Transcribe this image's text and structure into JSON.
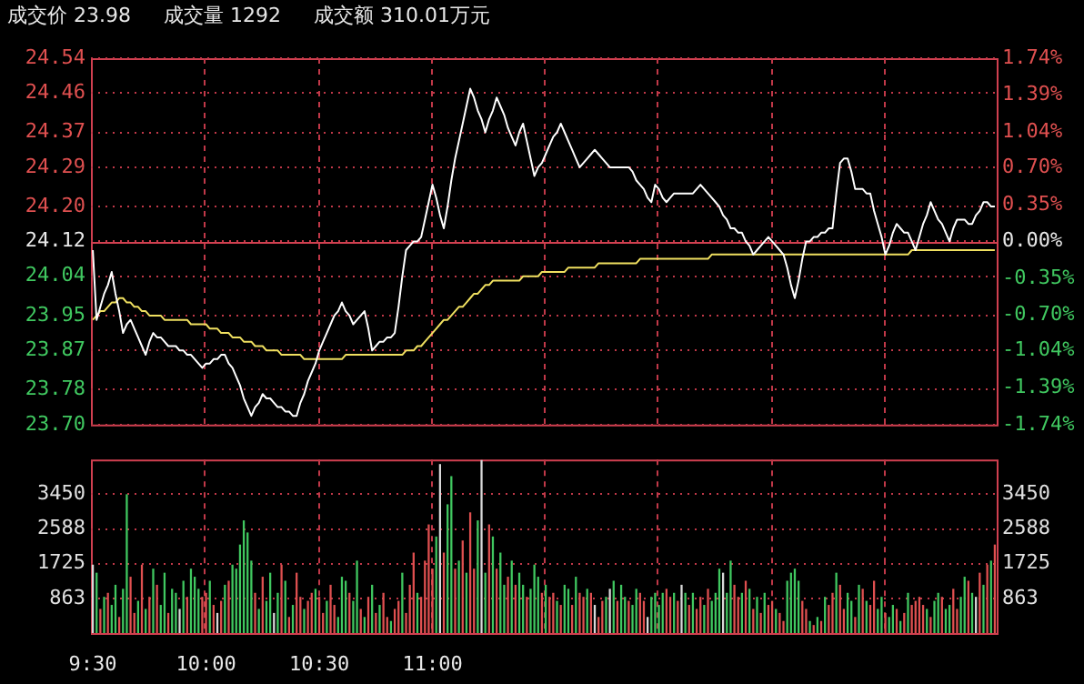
{
  "chart_data": [
    {
      "type": "line",
      "annotations": [
        "成交价 23.98",
        "成交量 1292",
        "成交额 310.01万元"
      ],
      "categories": [
        null,
        null,
        null,
        null,
        null,
        null,
        null,
        null,
        null,
        null,
        null,
        null,
        null,
        null,
        null,
        null,
        null,
        null,
        null,
        null,
        null,
        null,
        null,
        null,
        null,
        null,
        null,
        null,
        null,
        null,
        null,
        null,
        null,
        null,
        null,
        null,
        null,
        null,
        null,
        null,
        null,
        null,
        null,
        null,
        null,
        null,
        null,
        null,
        null,
        null,
        null,
        null,
        null,
        null,
        null,
        null,
        null,
        null,
        null,
        null,
        null,
        null,
        null,
        null,
        null,
        null,
        null,
        null,
        null,
        null,
        null,
        null,
        null,
        null,
        null,
        null,
        null,
        null,
        null,
        null,
        null,
        null,
        null,
        null,
        null,
        null,
        null,
        null,
        null,
        null,
        null,
        null,
        null,
        null,
        null,
        null,
        null,
        null,
        null,
        null,
        null,
        null,
        null,
        null,
        null,
        null,
        null,
        null,
        null,
        null,
        null,
        null,
        null,
        null,
        null,
        null,
        null,
        null,
        null,
        null,
        null,
        null,
        null,
        null,
        null,
        null,
        null,
        null,
        null,
        null,
        null,
        null,
        null,
        null,
        null,
        null,
        null,
        null,
        null,
        null,
        null,
        null,
        null,
        null,
        null,
        null,
        null,
        null,
        null,
        null,
        null,
        null,
        null,
        null,
        null,
        null,
        null,
        null,
        null,
        null,
        null,
        null,
        null,
        null,
        null,
        null,
        null,
        null,
        null,
        null,
        null,
        null,
        null,
        null,
        null,
        null,
        null,
        null,
        null,
        null,
        null,
        null,
        null,
        null,
        null,
        null,
        null,
        null,
        null,
        null,
        null,
        null,
        null,
        null,
        null,
        null,
        null,
        null,
        null,
        null,
        null,
        null,
        null,
        null,
        null,
        null,
        null,
        null,
        null,
        null,
        null,
        null,
        null,
        null,
        null,
        null,
        null,
        null,
        null,
        null,
        null,
        null,
        null,
        null,
        null,
        null,
        null,
        null,
        null,
        null,
        null,
        null,
        null,
        null,
        null,
        null,
        null,
        null,
        null,
        null
      ],
      "series": [
        {
          "color": "#ffffff",
          "values": [
            24.1,
            23.94,
            23.97,
            24.0,
            24.02,
            24.05,
            24.0,
            23.96,
            23.91,
            23.93,
            23.94,
            23.92,
            23.9,
            23.88,
            23.86,
            23.89,
            23.91,
            23.9,
            23.9,
            23.89,
            23.88,
            23.88,
            23.88,
            23.87,
            23.87,
            23.86,
            23.86,
            23.85,
            23.84,
            23.83,
            23.84,
            23.84,
            23.85,
            23.85,
            23.86,
            23.86,
            23.84,
            23.83,
            23.81,
            23.79,
            23.76,
            23.74,
            23.72,
            23.74,
            23.75,
            23.77,
            23.76,
            23.76,
            23.75,
            23.74,
            23.74,
            23.73,
            23.73,
            23.72,
            23.72,
            23.75,
            23.77,
            23.8,
            23.82,
            23.84,
            23.87,
            23.89,
            23.91,
            23.93,
            23.95,
            23.96,
            23.98,
            23.96,
            23.95,
            23.93,
            23.94,
            23.95,
            23.96,
            23.92,
            23.87,
            23.88,
            23.89,
            23.89,
            23.9,
            23.9,
            23.91,
            23.97,
            24.04,
            24.1,
            24.11,
            24.12,
            24.12,
            24.13,
            24.17,
            24.21,
            24.25,
            24.22,
            24.18,
            24.15,
            24.2,
            24.26,
            24.31,
            24.35,
            24.39,
            24.43,
            24.47,
            24.45,
            24.42,
            24.4,
            24.37,
            24.4,
            24.42,
            24.45,
            24.43,
            24.41,
            24.38,
            24.36,
            24.34,
            24.37,
            24.39,
            24.35,
            24.31,
            24.27,
            24.29,
            24.3,
            24.32,
            24.34,
            24.36,
            24.37,
            24.39,
            24.37,
            24.35,
            24.33,
            24.31,
            24.29,
            24.3,
            24.31,
            24.32,
            24.33,
            24.32,
            24.31,
            24.3,
            24.29,
            24.29,
            24.29,
            24.29,
            24.29,
            24.29,
            24.28,
            24.26,
            24.25,
            24.24,
            24.22,
            24.21,
            24.25,
            24.24,
            24.22,
            24.21,
            24.22,
            24.23,
            24.23,
            24.23,
            24.23,
            24.23,
            24.23,
            24.24,
            24.25,
            24.24,
            24.23,
            24.22,
            24.21,
            24.2,
            24.18,
            24.17,
            24.15,
            24.15,
            24.14,
            24.14,
            24.12,
            24.11,
            24.09,
            24.1,
            24.11,
            24.12,
            24.13,
            24.12,
            24.11,
            24.1,
            24.09,
            24.06,
            24.02,
            23.99,
            24.03,
            24.08,
            24.12,
            24.12,
            24.13,
            24.13,
            24.14,
            24.14,
            24.15,
            24.15,
            24.23,
            24.3,
            24.31,
            24.31,
            24.28,
            24.24,
            24.24,
            24.24,
            24.23,
            24.23,
            24.19,
            24.16,
            24.13,
            24.09,
            24.11,
            24.14,
            24.16,
            24.15,
            24.14,
            24.14,
            24.12,
            24.1,
            24.13,
            24.16,
            24.18,
            24.21,
            24.19,
            24.17,
            24.16,
            24.14,
            24.12,
            24.15,
            24.17,
            24.17,
            24.17,
            24.16,
            24.16,
            24.18,
            24.19,
            24.21,
            24.21,
            24.2,
            24.2
          ]
        },
        {
          "color": "#f0e060",
          "values": [
            23.94,
            23.95,
            23.96,
            23.96,
            23.97,
            23.98,
            23.98,
            23.99,
            23.99,
            23.98,
            23.98,
            23.97,
            23.97,
            23.96,
            23.96,
            23.95,
            23.95,
            23.95,
            23.95,
            23.94,
            23.94,
            23.94,
            23.94,
            23.94,
            23.94,
            23.94,
            23.93,
            23.93,
            23.93,
            23.93,
            23.93,
            23.92,
            23.92,
            23.92,
            23.91,
            23.91,
            23.91,
            23.9,
            23.9,
            23.9,
            23.89,
            23.89,
            23.89,
            23.88,
            23.88,
            23.88,
            23.87,
            23.87,
            23.87,
            23.87,
            23.86,
            23.86,
            23.86,
            23.86,
            23.86,
            23.86,
            23.85,
            23.85,
            23.85,
            23.85,
            23.85,
            23.85,
            23.85,
            23.85,
            23.85,
            23.85,
            23.85,
            23.86,
            23.86,
            23.86,
            23.86,
            23.86,
            23.86,
            23.86,
            23.86,
            23.86,
            23.86,
            23.86,
            23.86,
            23.86,
            23.86,
            23.86,
            23.86,
            23.87,
            23.87,
            23.87,
            23.88,
            23.88,
            23.89,
            23.9,
            23.91,
            23.92,
            23.93,
            23.94,
            23.94,
            23.95,
            23.96,
            23.97,
            23.97,
            23.98,
            23.99,
            24.0,
            24.0,
            24.01,
            24.02,
            24.02,
            24.03,
            24.03,
            24.03,
            24.03,
            24.03,
            24.03,
            24.03,
            24.03,
            24.04,
            24.04,
            24.04,
            24.04,
            24.04,
            24.05,
            24.05,
            24.05,
            24.05,
            24.05,
            24.05,
            24.05,
            24.06,
            24.06,
            24.06,
            24.06,
            24.06,
            24.06,
            24.06,
            24.06,
            24.07,
            24.07,
            24.07,
            24.07,
            24.07,
            24.07,
            24.07,
            24.07,
            24.07,
            24.07,
            24.07,
            24.08,
            24.08,
            24.08,
            24.08,
            24.08,
            24.08,
            24.08,
            24.08,
            24.08,
            24.08,
            24.08,
            24.08,
            24.08,
            24.08,
            24.08,
            24.08,
            24.08,
            24.08,
            24.08,
            24.09,
            24.09,
            24.09,
            24.09,
            24.09,
            24.09,
            24.09,
            24.09,
            24.09,
            24.09,
            24.09,
            24.09,
            24.09,
            24.09,
            24.09,
            24.09,
            24.09,
            24.09,
            24.09,
            24.09,
            24.09,
            24.09,
            24.09,
            24.09,
            24.09,
            24.09,
            24.09,
            24.09,
            24.09,
            24.09,
            24.09,
            24.09,
            24.09,
            24.09,
            24.09,
            24.09,
            24.09,
            24.09,
            24.09,
            24.09,
            24.09,
            24.09,
            24.09,
            24.09,
            24.09,
            24.09,
            24.09,
            24.09,
            24.09,
            24.09,
            24.09,
            24.09,
            24.09,
            24.1,
            24.1,
            24.1,
            24.1,
            24.1,
            24.1,
            24.1,
            24.1,
            24.1,
            24.1,
            24.1,
            24.1,
            24.1,
            24.1,
            24.1,
            24.1,
            24.1,
            24.1,
            24.1,
            24.1,
            24.1,
            24.1,
            24.1
          ]
        }
      ],
      "ylim": [
        23.7,
        24.54
      ],
      "yticks": [
        {
          "value": 23.7,
          "label": "23.70"
        },
        23.78,
        23.87,
        23.95,
        24.04,
        24.12,
        {
          "value": 24.2,
          "label": "24.20"
        },
        24.29,
        24.37,
        24.46,
        24.54
      ],
      "y2lim": [
        -1.74,
        1.74
      ],
      "y2ticks": [
        {
          "value": -1.74,
          "label": "-1.74%"
        },
        {
          "value": -1.39,
          "label": "-1.39%"
        },
        {
          "value": -1.04,
          "label": "-1.04%"
        },
        {
          "value": -0.7,
          "label": "-0.70%"
        },
        {
          "value": -0.35,
          "label": "-0.35%"
        },
        {
          "value": 0,
          "label": "0.00%"
        },
        {
          "value": 0.35,
          "label": "0.35%"
        },
        {
          "value": 0.7,
          "label": "0.70%"
        },
        {
          "value": 1.04,
          "label": "1.04%"
        },
        {
          "value": 1.39,
          "label": "1.39%"
        },
        {
          "value": 1.74,
          "label": "1.74%"
        }
      ],
      "ref_lines": [
        {
          "axis": "y",
          "value": 24.12,
          "color": "#d04050"
        }
      ],
      "grid": true,
      "legend": false,
      "tick_labels": "y"
    },
    {
      "type": "bar",
      "categories": [
        "9:30",
        null,
        null,
        null,
        null,
        null,
        null,
        null,
        null,
        null,
        null,
        null,
        null,
        null,
        null,
        null,
        null,
        null,
        null,
        null,
        null,
        null,
        null,
        null,
        null,
        null,
        null,
        null,
        null,
        null,
        "10:00",
        null,
        null,
        null,
        null,
        null,
        null,
        null,
        null,
        null,
        null,
        null,
        null,
        null,
        null,
        null,
        null,
        null,
        null,
        null,
        null,
        null,
        null,
        null,
        null,
        null,
        null,
        null,
        null,
        null,
        "10:30",
        null,
        null,
        null,
        null,
        null,
        null,
        null,
        null,
        null,
        null,
        null,
        null,
        null,
        null,
        null,
        null,
        null,
        null,
        null,
        null,
        null,
        null,
        null,
        null,
        null,
        null,
        null,
        null,
        null,
        "11:00",
        null,
        null,
        null,
        null,
        null,
        null,
        null,
        null,
        null,
        null,
        null,
        null,
        null,
        null,
        null,
        null,
        null,
        null,
        null,
        null,
        null,
        null,
        null,
        null,
        null,
        null,
        null,
        null,
        null,
        null,
        null,
        null,
        null,
        null,
        null,
        null,
        null,
        null,
        null,
        null,
        null,
        null,
        null,
        null,
        null,
        null,
        null,
        null,
        null,
        null,
        null,
        null,
        null,
        null,
        null,
        null,
        null,
        null,
        null,
        null,
        null,
        null,
        null,
        null,
        null,
        null,
        null,
        null,
        null,
        null,
        null,
        null,
        null,
        null,
        null,
        null,
        null,
        null,
        null,
        null,
        null,
        null,
        null,
        null,
        null,
        null,
        null,
        null,
        null,
        null,
        null,
        null,
        null,
        null,
        null,
        null,
        null,
        null,
        null,
        null,
        null,
        null,
        null,
        null,
        null,
        null,
        null,
        null,
        null,
        null,
        null,
        null,
        null,
        null,
        null,
        null,
        null,
        null,
        null,
        null,
        null,
        null,
        null,
        null,
        null,
        null,
        null,
        null,
        null,
        null,
        null,
        null,
        null,
        null,
        null,
        null,
        null,
        null,
        null,
        null,
        null,
        null,
        null,
        null,
        null,
        null,
        null,
        null,
        null
      ],
      "values": [
        1700,
        1500,
        600,
        900,
        1000,
        700,
        1200,
        400,
        1100,
        3450,
        1400,
        500,
        800,
        1700,
        600,
        900,
        1600,
        1200,
        700,
        1500,
        500,
        1100,
        1000,
        600,
        1300,
        900,
        1600,
        1400,
        1100,
        900,
        1000,
        1300,
        700,
        500,
        800,
        1200,
        1300,
        1700,
        1600,
        2200,
        2800,
        2500,
        1800,
        1000,
        600,
        1400,
        800,
        1500,
        500,
        1000,
        1700,
        1300,
        400,
        700,
        1500,
        900,
        600,
        800,
        1000,
        1100,
        900,
        500,
        800,
        1200,
        700,
        400,
        1400,
        1300,
        1000,
        800,
        1800,
        600,
        400,
        900,
        1200,
        500,
        700,
        1000,
        400,
        300,
        600,
        800,
        1500,
        500,
        1200,
        2000,
        1000,
        900,
        1800,
        2700,
        1600,
        2400,
        4200,
        2000,
        3200,
        3900,
        1600,
        1800,
        2300,
        1500,
        3000,
        1600,
        2800,
        4300,
        1500,
        2700,
        2400,
        1600,
        2000,
        1200,
        1400,
        1800,
        1200,
        1500,
        1200,
        900,
        1100,
        1700,
        1400,
        1000,
        1200,
        900,
        1000,
        800,
        700,
        1200,
        1100,
        700,
        1400,
        1000,
        900,
        1100,
        1000,
        700,
        400,
        800,
        900,
        1100,
        1300,
        800,
        1200,
        900,
        800,
        700,
        1100,
        1000,
        800,
        400,
        900,
        1000,
        700,
        1000,
        1100,
        900,
        1000,
        800,
        1200,
        1000,
        700,
        1000,
        600,
        900,
        700,
        1100,
        800,
        1000,
        1600,
        1500,
        1000,
        1800,
        1200,
        900,
        1000,
        1300,
        1100,
        600,
        900,
        500,
        1000,
        700,
        800,
        600,
        500,
        300,
        1300,
        1500,
        1600,
        1300,
        800,
        600,
        300,
        200,
        400,
        300,
        900,
        700,
        1000,
        1500,
        1200,
        600,
        1000,
        800,
        400,
        1200,
        1100,
        800,
        700,
        1300,
        600,
        900,
        500,
        400,
        700,
        600,
        300,
        500,
        1000,
        700,
        800,
        900,
        700,
        600,
        400,
        800,
        1000,
        900,
        600,
        700,
        1100,
        600,
        900,
        1400,
        1300,
        1000,
        900,
        1500,
        1200,
        1700,
        1800,
        2200
      ],
      "colors": [
        "#d8d8d8",
        "#40c860",
        "#e05050",
        "#40c860",
        "#e05050",
        "#40c860",
        "#40c860",
        "#e05050",
        "#40c860",
        "#40c860",
        "#e05050",
        "#e05050",
        "#40c860",
        "#e05050",
        "#40c860",
        "#e05050",
        "#40c860",
        "#e05050",
        "#40c860",
        "#40c860",
        "#e05050",
        "#40c860",
        "#40c860",
        "#d8d8d8",
        "#40c860",
        "#e05050",
        "#40c860",
        "#40c860",
        "#40c860",
        "#e05050",
        "#e05050",
        "#40c860",
        "#e05050",
        "#d8d8d8",
        "#e05050",
        "#40c860",
        "#e05050",
        "#40c860",
        "#40c860",
        "#40c860",
        "#40c860",
        "#40c860",
        "#40c860",
        "#e05050",
        "#40c860",
        "#e05050",
        "#40c860",
        "#40c860",
        "#d8d8d8",
        "#40c860",
        "#e05050",
        "#40c860",
        "#e05050",
        "#40c860",
        "#e05050",
        "#e05050",
        "#40c860",
        "#e05050",
        "#e05050",
        "#40c860",
        "#e05050",
        "#e05050",
        "#40c860",
        "#e05050",
        "#e05050",
        "#40c860",
        "#40c860",
        "#40c860",
        "#e05050",
        "#40c860",
        "#40c860",
        "#e05050",
        "#40c860",
        "#e05050",
        "#40c860",
        "#e05050",
        "#40c860",
        "#e05050",
        "#e05050",
        "#40c860",
        "#e05050",
        "#e05050",
        "#40c860",
        "#e05050",
        "#e05050",
        "#e05050",
        "#40c860",
        "#e05050",
        "#e05050",
        "#e05050",
        "#e05050",
        "#40c860",
        "#d8d8d8",
        "#e05050",
        "#40c860",
        "#40c860",
        "#e05050",
        "#40c860",
        "#e05050",
        "#40c860",
        "#e05050",
        "#e05050",
        "#40c860",
        "#d8d8d8",
        "#40c860",
        "#e05050",
        "#40c860",
        "#e05050",
        "#40c860",
        "#40c860",
        "#e05050",
        "#40c860",
        "#e05050",
        "#40c860",
        "#40c860",
        "#e05050",
        "#40c860",
        "#40c860",
        "#40c860",
        "#e05050",
        "#40c860",
        "#e05050",
        "#e05050",
        "#40c860",
        "#e05050",
        "#40c860",
        "#40c860",
        "#e05050",
        "#40c860",
        "#e05050",
        "#e05050",
        "#40c860",
        "#e05050",
        "#d8d8d8",
        "#e05050",
        "#e05050",
        "#40c860",
        "#d8d8d8",
        "#40c860",
        "#e05050",
        "#40c860",
        "#40c860",
        "#e05050",
        "#40c860",
        "#40c860",
        "#e05050",
        "#e05050",
        "#d8d8d8",
        "#40c860",
        "#40c860",
        "#40c860",
        "#40c860",
        "#e05050",
        "#e05050",
        "#40c860",
        "#e05050",
        "#d8d8d8",
        "#40c860",
        "#e05050",
        "#40c860",
        "#e05050",
        "#e05050",
        "#40c860",
        "#e05050",
        "#40c860",
        "#40c860",
        "#40c860",
        "#d8d8d8",
        "#40c860",
        "#40c860",
        "#e05050",
        "#e05050",
        "#40c860",
        "#e05050",
        "#40c860",
        "#e05050",
        "#40c860",
        "#e05050",
        "#40c860",
        "#e05050",
        "#e05050",
        "#40c860",
        "#e05050",
        "#e05050",
        "#40c860",
        "#40c860",
        "#40c860",
        "#40c860",
        "#e05050",
        "#e05050",
        "#40c860",
        "#e05050",
        "#40c860",
        "#e05050",
        "#40c860",
        "#e05050",
        "#e05050",
        "#40c860",
        "#e05050",
        "#e05050",
        "#40c860",
        "#40c860",
        "#e05050",
        "#40c860",
        "#e05050",
        "#40c860",
        "#e05050",
        "#e05050",
        "#40c860",
        "#40c860",
        "#e05050",
        "#40c860",
        "#40c860",
        "#e05050",
        "#40c860",
        "#e05050",
        "#40c860",
        "#e05050",
        "#e05050",
        "#e05050",
        "#e05050",
        "#40c860",
        "#e05050",
        "#40c860",
        "#40c860",
        "#e05050",
        "#40c860",
        "#40c860",
        "#e05050",
        "#e05050",
        "#40c860",
        "#40c860",
        "#e05050",
        "#40c860",
        "#d8d8d8",
        "#e05050",
        "#40c860",
        "#e05050",
        "#40c860",
        "#e05050"
      ],
      "ylim": [
        0,
        4313
      ],
      "yticks": [
        863,
        1725,
        2588,
        3450
      ],
      "y2lim": [
        0,
        4313
      ],
      "y2ticks": [
        863,
        1725,
        2588,
        3450
      ],
      "grid": true,
      "legend": false
    }
  ]
}
